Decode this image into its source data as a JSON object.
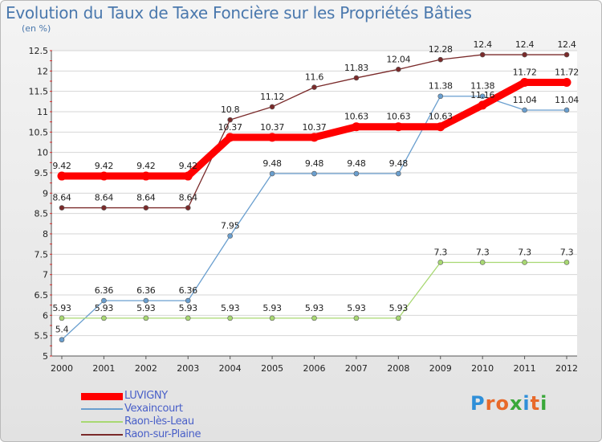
{
  "chart_data": {
    "type": "line",
    "title": "Evolution du Taux de Taxe Foncière sur les Propriétés Bâties",
    "unit_label": "(en %)",
    "categories": [
      "2000",
      "2001",
      "2002",
      "2003",
      "2004",
      "2005",
      "2006",
      "2007",
      "2008",
      "2009",
      "2010",
      "2011",
      "2012"
    ],
    "ylim": [
      5,
      12.5
    ],
    "yticks": [
      "5",
      "5.5",
      "6",
      "6.5",
      "7",
      "7.5",
      "8",
      "8.5",
      "9",
      "9.5",
      "10",
      "10.5",
      "11",
      "11.5",
      "12",
      "12.5"
    ],
    "grid": "horizontal",
    "legend_position": "bottom-left",
    "series": [
      {
        "name": "LUVIGNY",
        "color": "#ff0000",
        "values": [
          9.42,
          9.42,
          9.42,
          9.42,
          10.37,
          10.37,
          10.37,
          10.63,
          10.63,
          10.63,
          11.16,
          11.72,
          11.72
        ],
        "labels": [
          "9.42",
          "9.42",
          "9.42",
          "9.42",
          "10.37",
          "10.37",
          "10.37",
          "10.63",
          "10.63",
          "10.63",
          "11.16",
          "11.72",
          "11.72"
        ]
      },
      {
        "name": "Vexaincourt",
        "color": "#6a9fcf",
        "values": [
          5.4,
          6.36,
          6.36,
          6.36,
          7.95,
          9.48,
          9.48,
          9.48,
          9.48,
          11.38,
          11.38,
          11.04,
          11.04
        ],
        "labels": [
          "5.4",
          "6.36",
          "6.36",
          "6.36",
          "7.95",
          "9.48",
          "9.48",
          "9.48",
          "9.48",
          "11.38",
          "11.38",
          "11.04",
          "11.04"
        ]
      },
      {
        "name": "Raon-lès-Leau",
        "color": "#a8d872",
        "values": [
          5.93,
          5.93,
          5.93,
          5.93,
          5.93,
          5.93,
          5.93,
          5.93,
          5.93,
          7.3,
          7.3,
          7.3,
          7.3
        ],
        "labels": [
          "5.93",
          "5.93",
          "5.93",
          "5.93",
          "5.93",
          "5.93",
          "5.93",
          "5.93",
          "5.93",
          "7.3",
          "7.3",
          "7.3",
          "7.3"
        ]
      },
      {
        "name": "Raon-sur-Plaine",
        "color": "#7a2a2a",
        "values": [
          8.64,
          8.64,
          8.64,
          8.64,
          10.8,
          11.12,
          11.6,
          11.83,
          12.04,
          12.28,
          12.4,
          12.4,
          12.4
        ],
        "labels": [
          "8.64",
          "8.64",
          "8.64",
          "8.64",
          "10.8",
          "11.12",
          "11.6",
          "11.83",
          "12.04",
          "12.28",
          "12.4",
          "12.4",
          "12.4"
        ]
      }
    ]
  },
  "brand": {
    "text": "Proxiti",
    "letters": [
      {
        "ch": "P",
        "color": "#2f8fd8"
      },
      {
        "ch": "r",
        "color": "#e8692a"
      },
      {
        "ch": "o",
        "color": "#e8692a"
      },
      {
        "ch": "x",
        "color": "#3aa83a"
      },
      {
        "ch": "i",
        "color": "#2f8fd8"
      },
      {
        "ch": "t",
        "color": "#e8692a"
      },
      {
        "ch": "i",
        "color": "#3aa83a"
      }
    ]
  }
}
